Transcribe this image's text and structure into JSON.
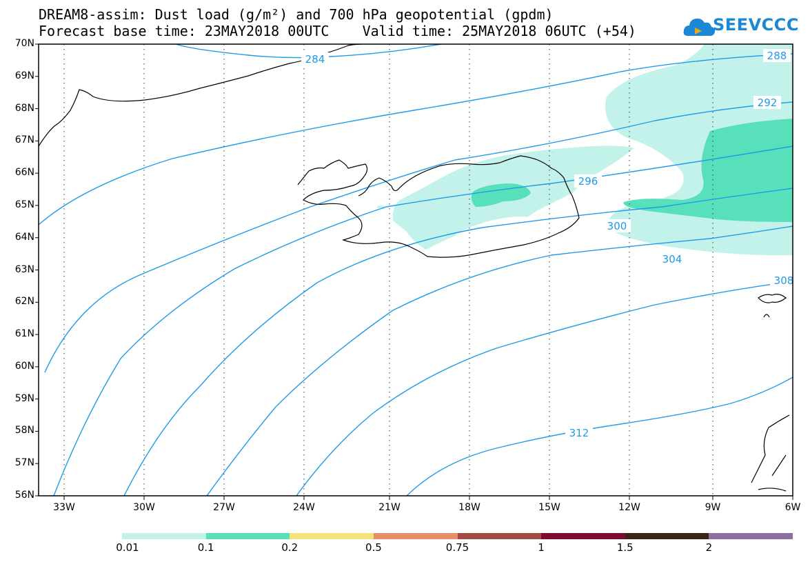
{
  "header": {
    "title_line1": "DREAM8-assim: Dust load (g/m²) and 700 hPa geopotential (gpdm)",
    "title_line2": "Forecast base time: 23MAY2018 00UTC    Valid time: 25MAY2018 06UTC (+54)"
  },
  "logo": {
    "text": "SEEVCCC",
    "icon": "cloud-icon",
    "color": "#1a88d4"
  },
  "map": {
    "lat_labels": [
      "70N",
      "69N",
      "68N",
      "67N",
      "66N",
      "65N",
      "64N",
      "63N",
      "62N",
      "61N",
      "60N",
      "59N",
      "58N",
      "57N",
      "56N"
    ],
    "lon_labels": [
      "33W",
      "30W",
      "27W",
      "24W",
      "21W",
      "18W",
      "15W",
      "12W",
      "9W",
      "6W"
    ],
    "contour_color": "#1e9be8",
    "contour_labels": [
      "284",
      "288",
      "292",
      "296",
      "300",
      "304",
      "308",
      "312"
    ],
    "dust_colors": {
      "light": "#c3f2ea",
      "medium": "#58e0bb"
    }
  },
  "legend": {
    "colors": [
      "#c3f2ea",
      "#58e0bb",
      "#f5e27a",
      "#e6906a",
      "#a14b43",
      "#7d0a2f",
      "#3b2416",
      "#8f6ea1"
    ],
    "ticks": [
      "0.01",
      "0.1",
      "0.2",
      "0.5",
      "0.75",
      "1",
      "1.5",
      "2"
    ]
  }
}
